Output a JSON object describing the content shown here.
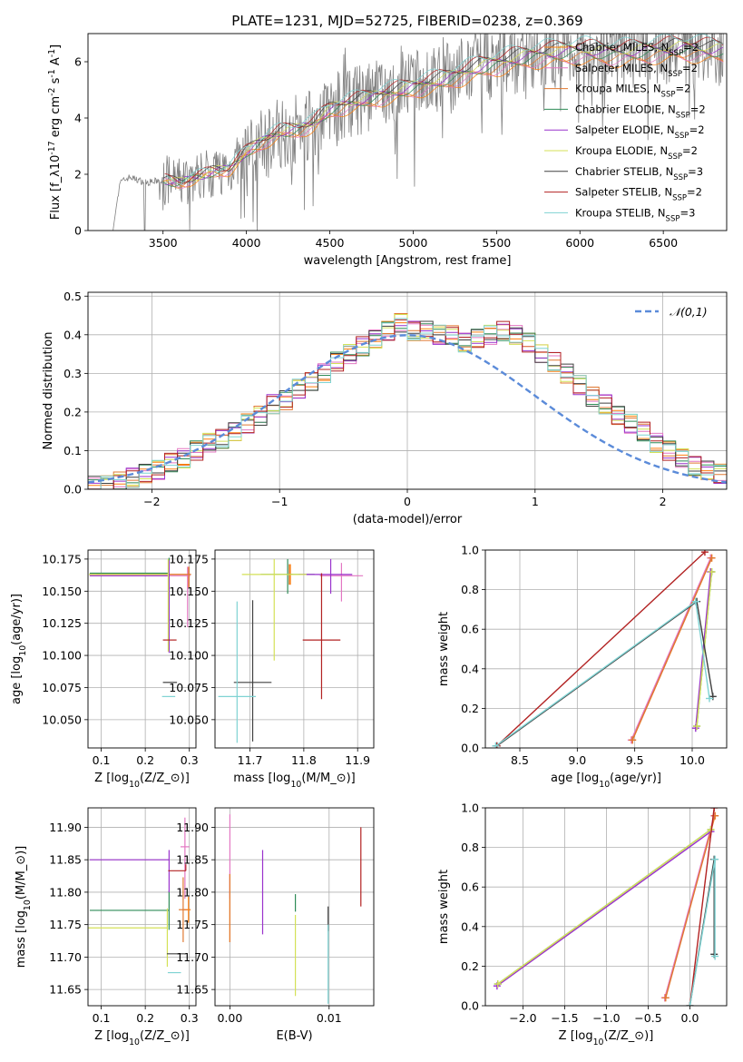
{
  "title": "PLATE=1231, MJD=52725, FIBERID=0238, z=0.369",
  "colors": {
    "Chabrier MILES": "#ff7f0e",
    "Salpeter MILES": "#e377c2",
    "Kroupa MILES": "#e07830",
    "Chabrier ELODIE": "#2e8b57",
    "Salpeter ELODIE": "#9932cc",
    "Kroupa ELODIE": "#d4e157",
    "Chabrier STELIB": "#404040",
    "Salpeter STELIB": "#b22222",
    "Kroupa STELIB": "#7fd3d3",
    "data": "#808080",
    "normal": "#5b8bd9"
  },
  "chart_data": [
    {
      "id": "spectrum",
      "type": "line",
      "xlabel": "wavelength [Angstrom, rest frame]",
      "ylabel": "Flux [f$_\\lambda$10$^{-17}$ erg cm$^{-2}$ s$^{-1}$ A$^{-1}$]",
      "xlim": [
        3050,
        6880
      ],
      "ylim": [
        0,
        7.0
      ],
      "xticks": [
        3500,
        4000,
        4500,
        5000,
        5500,
        6000,
        6500
      ],
      "yticks": [
        0,
        2,
        4,
        6
      ],
      "legend_position": "upper-right",
      "legend": [
        {
          "label": "Chabrier MILES, N",
          "sub": "SSP",
          "tail": "=2"
        },
        {
          "label": "Salpeter MILES, N",
          "sub": "SSP",
          "tail": "=2"
        },
        {
          "label": "Kroupa MILES, N",
          "sub": "SSP",
          "tail": "=2"
        },
        {
          "label": "Chabrier ELODIE, N",
          "sub": "SSP",
          "tail": "=2"
        },
        {
          "label": "Salpeter ELODIE, N",
          "sub": "SSP",
          "tail": "=2"
        },
        {
          "label": "Kroupa ELODIE, N",
          "sub": "SSP",
          "tail": "=2"
        },
        {
          "label": "Chabrier STELIB, N",
          "sub": "SSP",
          "tail": "=3"
        },
        {
          "label": "Salpeter STELIB, N",
          "sub": "SSP",
          "tail": "=2"
        },
        {
          "label": "Kroupa STELIB, N",
          "sub": "SSP",
          "tail": "=3"
        }
      ],
      "approx_continuum": {
        "x": [
          3200,
          3240,
          3300,
          3400,
          3500,
          3600,
          3700,
          3800,
          3900,
          4000,
          4100,
          4200,
          4300,
          4400,
          4500,
          4600,
          4800,
          5000,
          5200,
          5400,
          5600,
          5800,
          6000,
          6200,
          6400,
          6600,
          6850
        ],
        "y": [
          0.0,
          1.7,
          1.9,
          1.7,
          1.8,
          1.7,
          1.9,
          2.1,
          2.2,
          2.8,
          3.2,
          3.5,
          3.6,
          3.8,
          4.3,
          4.5,
          4.8,
          5.1,
          5.4,
          5.8,
          6.1,
          6.3,
          6.4,
          6.3,
          6.4,
          6.5,
          6.4
        ]
      }
    },
    {
      "id": "residuals",
      "type": "histogram",
      "xlabel": "(data-model)/error",
      "ylabel": "Normed distribution",
      "xlim": [
        -2.5,
        2.5
      ],
      "ylim": [
        0,
        0.51
      ],
      "xticks": [
        -2,
        -1,
        0,
        1,
        2
      ],
      "yticks": [
        0.0,
        0.1,
        0.2,
        0.3,
        0.4,
        0.5
      ],
      "legend": "$\\mathcal{N}(0,1)$",
      "bin_width": 0.1,
      "bin_start": -2.5,
      "approx_bin_values": [
        0.01,
        0.01,
        0.02,
        0.03,
        0.04,
        0.05,
        0.07,
        0.08,
        0.1,
        0.12,
        0.13,
        0.15,
        0.17,
        0.19,
        0.22,
        0.23,
        0.26,
        0.28,
        0.3,
        0.33,
        0.35,
        0.37,
        0.39,
        0.41,
        0.43,
        0.41,
        0.41,
        0.4,
        0.4,
        0.38,
        0.39,
        0.4,
        0.41,
        0.4,
        0.38,
        0.35,
        0.33,
        0.3,
        0.27,
        0.24,
        0.22,
        0.19,
        0.17,
        0.15,
        0.12,
        0.1,
        0.08,
        0.06,
        0.05,
        0.04
      ]
    },
    {
      "id": "age-vs-Z",
      "type": "errorbar",
      "xlabel": "Z [log$_{10}$($Z$/$Z_\\odot$)]",
      "ylabel": "age  [log$_{10}$($age$/$yr$)]",
      "xlim": [
        0.07,
        0.315
      ],
      "ylim": [
        10.028,
        10.182
      ],
      "xticks": [
        0.1,
        0.2,
        0.3
      ],
      "yticks": [
        10.05,
        10.075,
        10.1,
        10.125,
        10.15,
        10.175
      ],
      "points": [
        {
          "model": "Chabrier MILES",
          "x": 0.298,
          "y": 10.163,
          "xerr": [
            0.224,
            0.005
          ],
          "yerr": [
            0.01,
            0.006
          ]
        },
        {
          "model": "Salpeter MILES",
          "x": 0.296,
          "y": 10.162,
          "xerr": [
            0.222,
            0.006
          ],
          "yerr": [
            0.04,
            0.007
          ]
        },
        {
          "model": "Kroupa MILES",
          "x": 0.299,
          "y": 10.163,
          "xerr": [
            0.21,
            0.005
          ],
          "yerr": [
            0.01,
            0.006
          ]
        },
        {
          "model": "Chabrier ELODIE",
          "x": 0.254,
          "y": 10.164,
          "xerr": [
            0.18,
            0.0
          ],
          "yerr": [
            0.06,
            0.012
          ]
        },
        {
          "model": "Salpeter ELODIE",
          "x": 0.254,
          "y": 10.162,
          "xerr": [
            0.18,
            0.0
          ],
          "yerr": [
            0.06,
            0.012
          ]
        },
        {
          "model": "Kroupa ELODIE",
          "x": 0.252,
          "y": 10.163,
          "xerr": [
            0.18,
            0.0
          ],
          "yerr": [
            0.06,
            0.012
          ]
        },
        {
          "model": "Chabrier STELIB",
          "x": 0.272,
          "y": 10.079,
          "xerr": [
            0.032,
            0.0
          ],
          "yerr": [
            0.0,
            0.0
          ]
        },
        {
          "model": "Salpeter STELIB",
          "x": 0.271,
          "y": 10.112,
          "xerr": [
            0.031,
            0.0
          ],
          "yerr": [
            0.0,
            0.0
          ]
        },
        {
          "model": "Kroupa STELIB",
          "x": 0.268,
          "y": 10.068,
          "xerr": [
            0.03,
            0.0
          ],
          "yerr": [
            0.0,
            0.0
          ]
        }
      ]
    },
    {
      "id": "age-vs-mass",
      "type": "errorbar",
      "xlabel": "mass [log$_{10}$($M$/$M_\\odot$)]",
      "ylabel": "",
      "xlim": [
        11.635,
        11.93
      ],
      "ylim": [
        10.028,
        10.182
      ],
      "xticks": [
        11.7,
        11.8,
        11.9
      ],
      "yticks": [
        10.05,
        10.075,
        10.1,
        10.125,
        10.15,
        10.175
      ],
      "points": [
        {
          "model": "Chabrier MILES",
          "x": 11.775,
          "y": 10.163,
          "xerr": [
            0.005,
            0.005
          ],
          "yerr": [
            0.008,
            0.008
          ]
        },
        {
          "model": "Salpeter MILES",
          "x": 11.87,
          "y": 10.162,
          "xerr": [
            0.04,
            0.04
          ],
          "yerr": [
            0.02,
            0.01
          ]
        },
        {
          "model": "Kroupa MILES",
          "x": 11.773,
          "y": 10.163,
          "xerr": [
            0.005,
            0.005
          ],
          "yerr": [
            0.008,
            0.008
          ]
        },
        {
          "model": "Chabrier ELODIE",
          "x": 11.77,
          "y": 10.163,
          "xerr": [
            0.05,
            0.05
          ],
          "yerr": [
            0.015,
            0.012
          ]
        },
        {
          "model": "Salpeter ELODIE",
          "x": 11.85,
          "y": 10.163,
          "xerr": [
            0.06,
            0.04
          ],
          "yerr": [
            0.015,
            0.012
          ]
        },
        {
          "model": "Kroupa ELODIE",
          "x": 11.745,
          "y": 10.163,
          "xerr": [
            0.06,
            0.06
          ],
          "yerr": [
            0.067,
            0.012
          ]
        },
        {
          "model": "Chabrier STELIB",
          "x": 11.705,
          "y": 10.079,
          "xerr": [
            0.035,
            0.035
          ],
          "yerr": [
            0.046,
            0.064
          ]
        },
        {
          "model": "Salpeter STELIB",
          "x": 11.833,
          "y": 10.112,
          "xerr": [
            0.035,
            0.035
          ],
          "yerr": [
            0.046,
            0.052
          ]
        },
        {
          "model": "Kroupa STELIB",
          "x": 11.676,
          "y": 10.068,
          "xerr": [
            0.035,
            0.035
          ],
          "yerr": [
            0.036,
            0.074
          ]
        }
      ]
    },
    {
      "id": "mass-weight-vs-age",
      "type": "line",
      "xlabel": "age  [log$_{10}$($age$/$yr$)]",
      "ylabel": "mass weight",
      "xlim": [
        8.2,
        10.3
      ],
      "ylim": [
        0,
        1.0
      ],
      "xticks": [
        8.5,
        9.0,
        9.5,
        10.0
      ],
      "yticks": [
        0.0,
        0.2,
        0.4,
        0.6,
        0.8,
        1.0
      ],
      "series": [
        {
          "model": "Chabrier MILES",
          "x": [
            9.48,
            10.17
          ],
          "y": [
            0.04,
            0.96
          ]
        },
        {
          "model": "Salpeter MILES",
          "x": [
            9.47,
            10.16
          ],
          "y": [
            0.04,
            0.96
          ]
        },
        {
          "model": "Kroupa MILES",
          "x": [
            9.48,
            10.17
          ],
          "y": [
            0.04,
            0.96
          ]
        },
        {
          "model": "Chabrier ELODIE",
          "x": [
            10.04,
            10.17
          ],
          "y": [
            0.11,
            0.89
          ]
        },
        {
          "model": "Salpeter ELODIE",
          "x": [
            10.03,
            10.16
          ],
          "y": [
            0.1,
            0.89
          ]
        },
        {
          "model": "Kroupa ELODIE",
          "x": [
            10.04,
            10.17
          ],
          "y": [
            0.11,
            0.89
          ]
        },
        {
          "model": "Chabrier STELIB",
          "x": [
            8.3,
            10.04,
            10.18
          ],
          "y": [
            0.01,
            0.74,
            0.26
          ]
        },
        {
          "model": "Salpeter STELIB",
          "x": [
            8.3,
            10.11
          ],
          "y": [
            0.01,
            0.99
          ]
        },
        {
          "model": "Kroupa STELIB",
          "x": [
            8.29,
            10.03,
            10.15
          ],
          "y": [
            0.01,
            0.74,
            0.25
          ]
        }
      ]
    },
    {
      "id": "mass-vs-Z",
      "type": "errorbar",
      "xlabel": "Z [log$_{10}$($Z$/$Z_\\odot$)]",
      "ylabel": "mass [log$_{10}$($M$/$M_\\odot$)]",
      "xlim": [
        0.07,
        0.315
      ],
      "ylim": [
        11.625,
        11.93
      ],
      "xticks": [
        0.1,
        0.2,
        0.3
      ],
      "yticks": [
        11.65,
        11.7,
        11.75,
        11.8,
        11.85,
        11.9
      ],
      "points": [
        {
          "model": "Chabrier MILES",
          "x": 0.298,
          "y": 11.773,
          "xerr": [
            0.01,
            0.005
          ],
          "yerr": [
            0.02,
            0.02
          ]
        },
        {
          "model": "Salpeter MILES",
          "x": 0.29,
          "y": 11.87,
          "xerr": [
            0.01,
            0.01
          ],
          "yerr": [
            0.08,
            0.045
          ]
        },
        {
          "model": "Kroupa MILES",
          "x": 0.286,
          "y": 11.773,
          "xerr": [
            0.01,
            0.01
          ],
          "yerr": [
            0.05,
            0.05
          ]
        },
        {
          "model": "Chabrier ELODIE",
          "x": 0.254,
          "y": 11.772,
          "xerr": [
            0.18,
            0.0
          ],
          "yerr": [
            0.03,
            0.03
          ]
        },
        {
          "model": "Salpeter ELODIE",
          "x": 0.254,
          "y": 11.85,
          "xerr": [
            0.18,
            0.0
          ],
          "yerr": [
            0.05,
            0.015
          ]
        },
        {
          "model": "Kroupa ELODIE",
          "x": 0.25,
          "y": 11.745,
          "xerr": [
            0.18,
            0.0
          ],
          "yerr": [
            0.06,
            0.03
          ]
        },
        {
          "model": "Chabrier STELIB",
          "x": 0.289,
          "y": 11.705,
          "xerr": [
            0.04,
            0.0
          ],
          "yerr": [
            0.0,
            0.0
          ]
        },
        {
          "model": "Salpeter STELIB",
          "x": 0.292,
          "y": 11.833,
          "xerr": [
            0.04,
            0.0
          ],
          "yerr": [
            0.0,
            0.01
          ]
        },
        {
          "model": "Kroupa STELIB",
          "x": 0.281,
          "y": 11.676,
          "xerr": [
            0.03,
            0.0
          ],
          "yerr": [
            0.0,
            0.0
          ]
        }
      ]
    },
    {
      "id": "mass-vs-ebv",
      "type": "errorbar",
      "xlabel": "E(B-V)",
      "ylabel": "",
      "xlim": [
        -0.0015,
        0.0145
      ],
      "ylim": [
        11.625,
        11.93
      ],
      "xticks": [
        0.0,
        0.01
      ],
      "yticks": [
        11.65,
        11.7,
        11.75,
        11.8,
        11.85,
        11.9
      ],
      "points": [
        {
          "model": "Chabrier MILES",
          "x": 0.0,
          "y": 11.773,
          "xerr": [
            0,
            0
          ],
          "yerr": [
            0.05,
            0.055
          ]
        },
        {
          "model": "Salpeter MILES",
          "x": 0.0,
          "y": 11.87,
          "xerr": [
            0,
            0
          ],
          "yerr": [
            0.08,
            0.05
          ]
        },
        {
          "model": "Kroupa MILES",
          "x": 0.0,
          "y": 11.773,
          "xerr": [
            0,
            0
          ],
          "yerr": [
            0.05,
            0.055
          ]
        },
        {
          "model": "Chabrier ELODIE",
          "x": 0.0066,
          "y": 11.77,
          "xerr": [
            0,
            0
          ],
          "yerr": [
            0.0,
            0.027
          ]
        },
        {
          "model": "Salpeter ELODIE",
          "x": 0.0033,
          "y": 11.8,
          "xerr": [
            0,
            0
          ],
          "yerr": [
            0.065,
            0.065
          ]
        },
        {
          "model": "Kroupa ELODIE",
          "x": 0.0066,
          "y": 11.7,
          "xerr": [
            0,
            0
          ],
          "yerr": [
            0.06,
            0.065
          ]
        },
        {
          "model": "Chabrier STELIB",
          "x": 0.0099,
          "y": 11.74,
          "xerr": [
            0,
            0
          ],
          "yerr": [
            0.0,
            0.038
          ]
        },
        {
          "model": "Salpeter STELIB",
          "x": 0.0132,
          "y": 11.84,
          "xerr": [
            0,
            0
          ],
          "yerr": [
            0.062,
            0.06
          ]
        },
        {
          "model": "Kroupa STELIB",
          "x": 0.0099,
          "y": 11.69,
          "xerr": [
            0,
            0
          ],
          "yerr": [
            0.062,
            0.06
          ]
        }
      ]
    },
    {
      "id": "mass-weight-vs-Z",
      "type": "line",
      "xlabel": "Z [log$_{10}$($Z$/$Z_\\odot$)]",
      "ylabel": "mass weight",
      "xlim": [
        -2.45,
        0.44
      ],
      "ylim": [
        0,
        1.0
      ],
      "xticks": [
        -2.0,
        -1.5,
        -1.0,
        -0.5,
        0.0
      ],
      "yticks": [
        0.0,
        0.2,
        0.4,
        0.6,
        0.8,
        1.0
      ],
      "series": [
        {
          "model": "Chabrier MILES",
          "x": [
            -0.3,
            0.3
          ],
          "y": [
            0.04,
            0.96
          ]
        },
        {
          "model": "Salpeter MILES",
          "x": [
            -0.3,
            0.29
          ],
          "y": [
            0.04,
            0.96
          ]
        },
        {
          "model": "Kroupa MILES",
          "x": [
            -0.29,
            0.3
          ],
          "y": [
            0.04,
            0.96
          ]
        },
        {
          "model": "Chabrier ELODIE",
          "x": [
            -2.3,
            0.25
          ],
          "y": [
            0.11,
            0.89
          ]
        },
        {
          "model": "Salpeter ELODIE",
          "x": [
            -2.31,
            0.25
          ],
          "y": [
            0.1,
            0.88
          ]
        },
        {
          "model": "Kroupa ELODIE",
          "x": [
            -2.3,
            0.25
          ],
          "y": [
            0.11,
            0.89
          ]
        },
        {
          "model": "Chabrier STELIB",
          "x": [
            0.0,
            0.29,
            0.29
          ],
          "y": [
            0.0,
            0.74,
            0.26
          ]
        },
        {
          "model": "Salpeter STELIB",
          "x": [
            0.0,
            0.29
          ],
          "y": [
            0.0,
            1.0
          ]
        },
        {
          "model": "Kroupa STELIB",
          "x": [
            0.0,
            0.3,
            0.3
          ],
          "y": [
            0.0,
            0.74,
            0.25
          ]
        }
      ]
    }
  ]
}
